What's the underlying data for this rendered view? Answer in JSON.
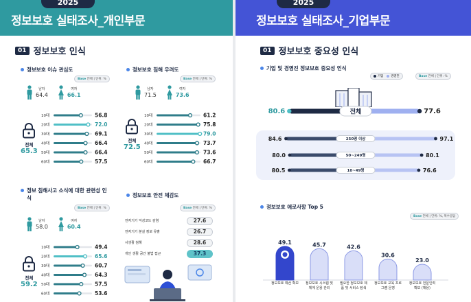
{
  "left": {
    "year": "2025",
    "title": "정보보호 실태조사_개인부문",
    "section_num": "01",
    "section_title": "정보보호 인식",
    "base_label": "Base",
    "base_text": "전체 | 단위: %",
    "blocks": [
      {
        "title": "정보보호 이슈 관심도",
        "male_label": "남자",
        "male": "64.4",
        "female_label": "여자",
        "female": "66.1",
        "total_label": "전체",
        "total": "65.3"
      },
      {
        "title": "정보보호 침해 우려도",
        "male_label": "남자",
        "male": "71.5",
        "female_label": "여자",
        "female": "73.6",
        "total_label": "전체",
        "total": "72.5"
      },
      {
        "title": "정보 침해사고 소식에 대한 관련성 인식",
        "male_label": "남자",
        "male": "58.0",
        "female_label": "여자",
        "female": "60.4",
        "total_label": "전체",
        "total": "59.2"
      },
      {
        "title": "정보보호 안전 체감도"
      }
    ],
    "safety_items": [
      {
        "label": "전자기기 악성코드 감염",
        "value": "27.6"
      },
      {
        "label": "전자기기 분실 정보 유출",
        "value": "26.7"
      },
      {
        "label": "사생활 침해",
        "value": "28.6"
      },
      {
        "label": "개인 생활 공간 불법 접근",
        "value": "37.3"
      }
    ]
  },
  "right": {
    "year": "2025",
    "title": "정보보호 실태조사_기업부문",
    "section_num": "01",
    "section_title": "정보보호 중요성 인식",
    "sub1_title": "기업 및 경영진 정보보호 중요성 인식",
    "legend_a": "기업",
    "legend_b": "경영진",
    "base_label": "Base",
    "base_text": "전체 | 단위: %",
    "total_label": "전체",
    "sub2_title": "정보보호 애로사항 Top 5",
    "base2_text": "전체 | 단위: %, 복수응답"
  },
  "chart_data": [
    {
      "type": "bar",
      "title": "정보보호 이슈 관심도",
      "categories": [
        "10대",
        "20대",
        "30대",
        "40대",
        "50대",
        "60대"
      ],
      "values": [
        56.8,
        72.0,
        69.1,
        66.4,
        66.4,
        57.5
      ],
      "highlight_index": 1,
      "xlim": [
        0,
        80
      ]
    },
    {
      "type": "bar",
      "title": "정보보호 침해 우려도",
      "categories": [
        "10대",
        "20대",
        "30대",
        "40대",
        "50대",
        "60대"
      ],
      "values": [
        61.2,
        75.8,
        79.0,
        73.7,
        73.6,
        66.7
      ],
      "highlight_index": 2,
      "xlim": [
        0,
        80
      ]
    },
    {
      "type": "bar",
      "title": "정보 침해사고 소식에 대한 관련성 인식",
      "categories": [
        "10대",
        "20대",
        "30대",
        "40대",
        "50대",
        "60대"
      ],
      "values": [
        49.4,
        65.6,
        60.7,
        64.3,
        57.5,
        53.6
      ],
      "highlight_index": 1,
      "xlim": [
        0,
        80
      ]
    },
    {
      "type": "bar",
      "title": "기업 및 경영진 정보보호 중요성 인식",
      "categories": [
        "전체",
        "250명 이상",
        "50~249명",
        "10~49명"
      ],
      "series": [
        {
          "name": "기업",
          "values": [
            80.6,
            84.6,
            80.0,
            80.5
          ]
        },
        {
          "name": "경영진",
          "values": [
            77.6,
            97.1,
            80.1,
            76.6
          ]
        }
      ]
    },
    {
      "type": "bar",
      "title": "정보보호 애로사항 Top 5",
      "categories": [
        "정보보호 예산 확보",
        "정보보호 시스템 및 체계 운용 관리",
        "필요한 정보보호 제품 및 서비스 탐색",
        "정보보호 교육 프로그램 운영",
        "정보보호 전문인력 확보 (채용)"
      ],
      "values": [
        49.1,
        45.7,
        42.6,
        30.6,
        23.0
      ],
      "highlight_index": 0,
      "ylim": [
        0,
        60
      ]
    }
  ]
}
